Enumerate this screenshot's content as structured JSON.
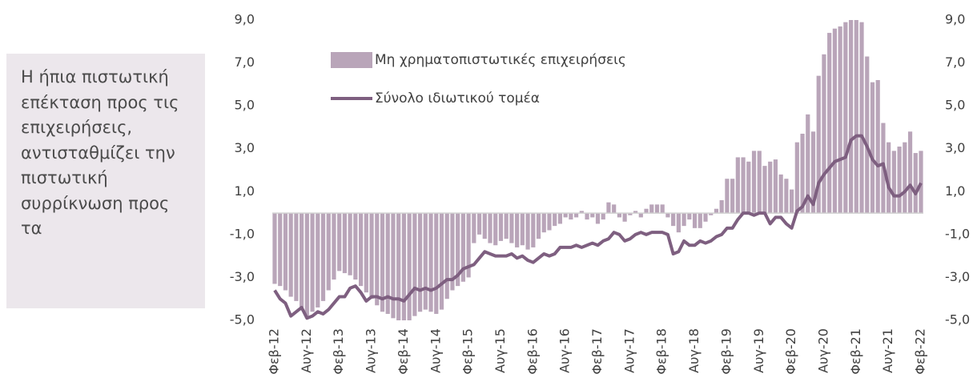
{
  "chart_data": {
    "type": "bar",
    "annotation": "Η ήπια πιστωτική επέκταση προς τις επιχειρήσεις, αντισταθμίζει την πιστωτική συρρίκνωση προς τα",
    "categories": [
      "Φεβ-12",
      null,
      null,
      null,
      null,
      null,
      "Αυγ-12",
      null,
      null,
      null,
      null,
      null,
      "Φεβ-13",
      null,
      null,
      null,
      null,
      null,
      "Αυγ-13",
      null,
      null,
      null,
      null,
      null,
      "Φεβ-14",
      null,
      null,
      null,
      null,
      null,
      "Αυγ-14",
      null,
      null,
      null,
      null,
      null,
      "Φεβ-15",
      null,
      null,
      null,
      null,
      null,
      "Αυγ-15",
      null,
      null,
      null,
      null,
      null,
      "Φεβ-16",
      null,
      null,
      null,
      null,
      null,
      "Αυγ-16",
      null,
      null,
      null,
      null,
      null,
      "Φεβ-17",
      null,
      null,
      null,
      null,
      null,
      "Αυγ-17",
      null,
      null,
      null,
      null,
      null,
      "Φεβ-18",
      null,
      null,
      null,
      null,
      null,
      "Αυγ-18",
      null,
      null,
      null,
      null,
      null,
      "Φεβ-19",
      null,
      null,
      null,
      null,
      null,
      "Αυγ-19",
      null,
      null,
      null,
      null,
      null,
      "Φεβ-20",
      null,
      null,
      null,
      null,
      null,
      "Αυγ-20",
      null,
      null,
      null,
      null,
      null,
      "Φεβ-21",
      null,
      null,
      null,
      null,
      null,
      "Αυγ-21",
      null,
      null,
      null,
      null,
      null,
      "Φεβ-22"
    ],
    "series": [
      {
        "name": "Μη χρηματοπιστωτικές επιχειρήσεις",
        "type": "bar",
        "color": "#b9a5b9",
        "values": [
          -3.3,
          -3.4,
          -3.6,
          -3.9,
          -4.1,
          -4.4,
          -4.9,
          -4.6,
          -4.4,
          -4.1,
          -3.6,
          -3.1,
          -2.7,
          -2.8,
          -2.9,
          -3.1,
          -3.4,
          -3.7,
          -4.0,
          -4.3,
          -4.6,
          -4.7,
          -4.9,
          -5.0,
          -5.0,
          -5.0,
          -4.8,
          -4.6,
          -4.5,
          -4.6,
          -4.7,
          -4.5,
          -4.0,
          -3.6,
          -3.4,
          -3.2,
          -3.0,
          -1.4,
          -1.0,
          -1.2,
          -1.4,
          -1.5,
          -1.3,
          -1.2,
          -1.4,
          -1.6,
          -1.5,
          -1.7,
          -1.6,
          -1.2,
          -0.9,
          -0.8,
          -0.6,
          -0.5,
          -0.2,
          -0.3,
          -0.2,
          0.1,
          -0.3,
          -0.2,
          -0.5,
          -0.3,
          0.5,
          0.4,
          -0.2,
          -0.4,
          -0.1,
          0.1,
          -0.2,
          0.2,
          0.4,
          0.4,
          0.4,
          -0.2,
          -0.6,
          -0.9,
          -0.6,
          -0.3,
          -0.7,
          -0.7,
          -0.4,
          -0.1,
          0.2,
          0.6,
          1.6,
          1.6,
          2.6,
          2.6,
          2.4,
          2.9,
          2.9,
          2.2,
          2.4,
          2.5,
          1.8,
          1.6,
          1.1,
          3.3,
          3.7,
          4.6,
          3.8,
          6.4,
          7.4,
          8.4,
          8.6,
          8.7,
          8.9,
          9.0,
          9.0,
          8.9,
          7.3,
          6.1,
          6.2,
          4.2,
          3.3,
          2.9,
          3.1,
          3.3,
          3.8,
          2.8,
          2.9
        ]
      },
      {
        "name": "Σύνολο ιδιωτικού τομέα",
        "type": "line",
        "color": "#7e5f80",
        "values": [
          -3.6,
          -4.0,
          -4.2,
          -4.8,
          -4.6,
          -4.4,
          -4.9,
          -4.8,
          -4.6,
          -4.7,
          -4.5,
          -4.2,
          -3.9,
          -3.9,
          -3.5,
          -3.4,
          -3.7,
          -4.1,
          -3.9,
          -3.9,
          -4.0,
          -3.9,
          -4.0,
          -4.0,
          -4.1,
          -3.8,
          -3.5,
          -3.6,
          -3.5,
          -3.6,
          -3.5,
          -3.3,
          -3.1,
          -3.1,
          -2.9,
          -2.6,
          -2.5,
          -2.4,
          -2.1,
          -1.8,
          -1.9,
          -2.0,
          -2.0,
          -2.0,
          -1.9,
          -2.1,
          -2.0,
          -2.2,
          -2.3,
          -2.1,
          -1.9,
          -2.0,
          -1.9,
          -1.6,
          -1.6,
          -1.6,
          -1.5,
          -1.6,
          -1.5,
          -1.4,
          -1.5,
          -1.3,
          -1.2,
          -0.9,
          -1.0,
          -1.3,
          -1.2,
          -1.0,
          -0.9,
          -1.0,
          -0.9,
          -0.9,
          -0.9,
          -1.0,
          -1.9,
          -1.8,
          -1.3,
          -1.5,
          -1.5,
          -1.3,
          -1.4,
          -1.3,
          -1.1,
          -1.0,
          -0.7,
          -0.7,
          -0.3,
          0.0,
          0.0,
          -0.1,
          0.0,
          0.0,
          -0.5,
          -0.2,
          -0.2,
          -0.5,
          -0.7,
          0.1,
          0.3,
          0.8,
          0.4,
          1.4,
          1.8,
          2.1,
          2.4,
          2.5,
          2.6,
          3.4,
          3.6,
          3.6,
          3.1,
          2.5,
          2.2,
          2.3,
          1.2,
          0.8,
          0.8,
          1.0,
          1.3,
          0.9,
          1.4
        ]
      }
    ],
    "ylim": [
      -5,
      9
    ],
    "yticks": [
      {
        "value": -5,
        "label": "-5,0"
      },
      {
        "value": -3,
        "label": "-3,0"
      },
      {
        "value": -1,
        "label": "-1,0"
      },
      {
        "value": 1,
        "label": "1,0"
      },
      {
        "value": 3,
        "label": "3,0"
      },
      {
        "value": 5,
        "label": "5,0"
      },
      {
        "value": 7,
        "label": "7,0"
      },
      {
        "value": 9,
        "label": "9,0"
      }
    ],
    "y2lim": [
      -5,
      9
    ],
    "y2ticks": [
      {
        "value": -5,
        "label": "-5,0"
      },
      {
        "value": -3,
        "label": "-3,0"
      },
      {
        "value": -1,
        "label": "-1,0"
      },
      {
        "value": 1,
        "label": "1,0"
      },
      {
        "value": 3,
        "label": "3,0"
      },
      {
        "value": 5,
        "label": "5,0"
      },
      {
        "value": 7,
        "label": "7,0"
      },
      {
        "value": 9,
        "label": "9,0"
      }
    ],
    "grid": false
  }
}
